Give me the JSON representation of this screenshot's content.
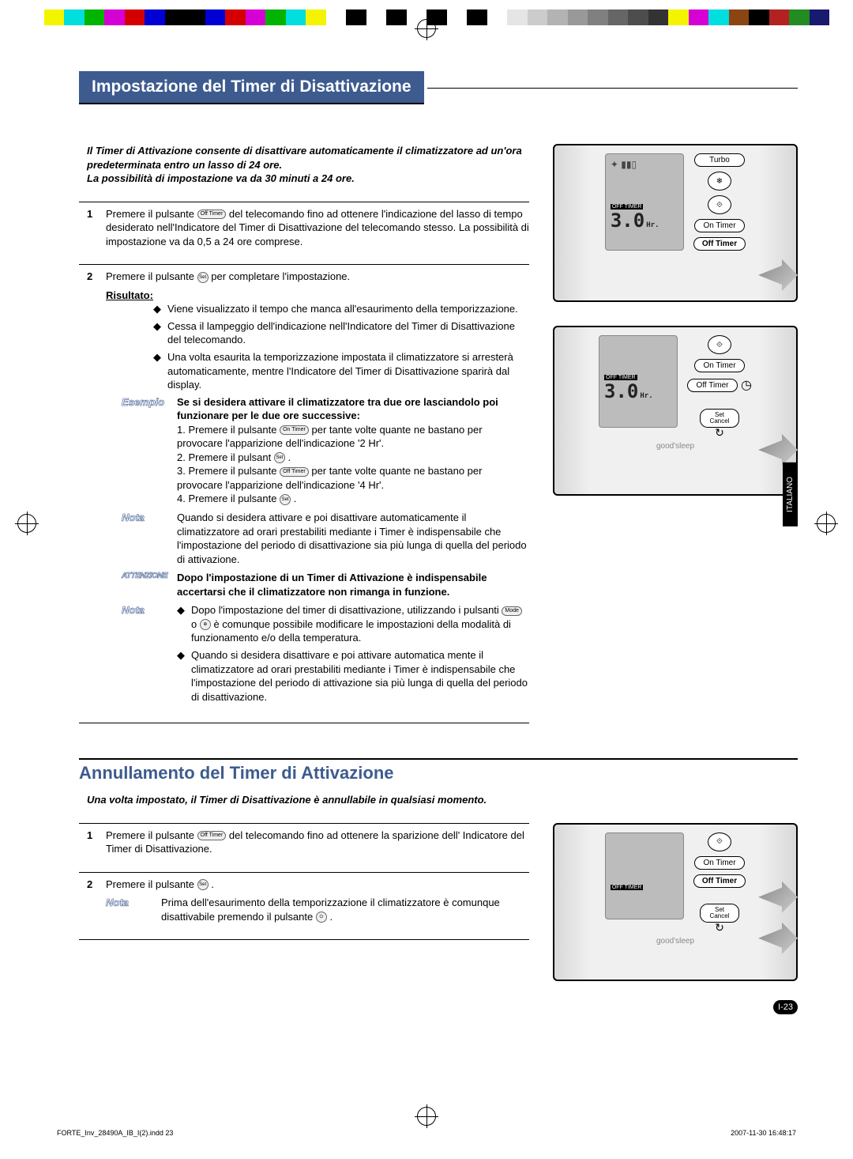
{
  "colorbar": [
    "#ffffff",
    "#f4f400",
    "#00dede",
    "#00b400",
    "#d400d4",
    "#d40000",
    "#0000d4",
    "#000000",
    "#000000",
    "#0000d4",
    "#d40000",
    "#d400d4",
    "#00b400",
    "#00dede",
    "#f4f400",
    "#ffffff",
    "#000000",
    "#ffffff",
    "#000000",
    "#ffffff",
    "#000000",
    "#ffffff",
    "#000000",
    "#ffffff",
    "#e5e5e5",
    "#cccccc",
    "#b3b3b3",
    "#999999",
    "#808080",
    "#666666",
    "#4d4d4d",
    "#333333",
    "#f4f400",
    "#d400d4",
    "#00dede",
    "#8b4513",
    "#000000",
    "#b22222",
    "#228b22",
    "#191970"
  ],
  "colors": {
    "accent": "#3d5b8f",
    "text": "#000000",
    "bg": "#ffffff"
  },
  "header1": "Impostazione del  Timer di Disattivazione",
  "intro1a": "Il Timer di Attivazione consente di disattivare automaticamente il climatizzatore ad un'ora predeterminata  entro un lasso di 24 ore.",
  "intro1b": "La possibilità di impostazione va da 30 minuti  a 24 ore.",
  "step1": {
    "num": "1",
    "text": "Premere il pulsante           del telecomando fino ad ottenere l'indicazione del lasso di tempo desiderato nell'Indicatore del Timer di Disattivazione del telecomando stesso.  La possibilità di impostazione va da 0,5  a 24 ore comprese.",
    "btn": "Off Timer"
  },
  "step2": {
    "num": "2",
    "text_a": "Premere il pulsante ",
    "text_b": " per completare l'impostazione.",
    "risultato": "Risultato",
    "b1": "Viene visualizzato il tempo che manca all'esaurimento della temporizzazione.",
    "b2": "Cessa il lampeggio dell'indicazione nell'Indicatore del Timer di Disattivazione del telecomando.",
    "b3": "Una volta esaurita la temporizzazione impostata il climatizzatore si arresterà automaticamente, mentre l'Indicatore del Timer di Disattivazione sparirà dal display."
  },
  "esempio": {
    "label": "Esempio",
    "title": "Se si desidera attivare il climatizzatore tra due ore lasciandolo poi  funzionare per le due ore successive:",
    "l1": "1. Premere il pulsante             per tante volte quante ne bastano per provocare l'apparizione dell'indicazione '2 Hr'.",
    "l1btn": "On Timer",
    "l2": "2. Premere il pulsant          .",
    "l3": "3. Premere il pulsante             per tante volte quante ne bastano per provocare l'apparizione dell'indicazione '4 Hr'.",
    "l3btn": "Off Timer",
    "l4": "4. Premere il pulsante          ."
  },
  "nota1": {
    "label": "Nota",
    "text": "Quando si desidera attivare  e poi disattivare automaticamente  il climatizzatore ad orari prestabiliti mediante i Timer è indispensabile che l'impostazione del periodo di disattivazione sia più lunga di quella del periodo di attivazione."
  },
  "attenzione": {
    "label": "ATTENZIONE",
    "text": "Dopo l'impostazione di un Timer di Attivazione è indispensabile accertarsi che il climatizzatore non rimanga in funzione."
  },
  "nota2": {
    "label": "Nota",
    "b1": "Dopo l'impostazione del timer di disattivazione, utilizzando i pulsanti           o          è comunque possibile modificare le impostazioni della modalità di funzionamento e/o della temperatura.",
    "b1_btn1": "Mode",
    "b2": "Quando si desidera disattivare  e poi attivare automatica mente  il climatizzatore ad orari prestabiliti mediante i Timer è indispensabile che l'impostazione del periodo di attivazione sia più lunga di quella del periodo di disattivazione."
  },
  "header2": "Annullamento del  Timer di Attivazione",
  "intro2": "Una volta impostato, il  Timer di Disattivazione  è annullabile in qualsiasi momento.",
  "step2_1": {
    "num": "1",
    "text": "Premere il pulsante            del telecomando fino ad ottenere la sparizione dell' Indicatore del Timer di Disattivazione.",
    "btn": "Off Timer"
  },
  "step2_2": {
    "num": "2",
    "text_a": "Premere il pulsante ",
    "text_b": " .",
    "nota_label": "Nota",
    "nota_text": "Prima dell'esaurimento della temporizzazione il climatizzatore è comunque disattivabile premendo il pulsante          ."
  },
  "remote": {
    "turbo": "Turbo",
    "on_timer": "On Timer",
    "off_timer_btn": "Off Timer",
    "off_timer_tag": "OFF  TIMER",
    "seg": "3.0",
    "hr": "Hr.",
    "set": "Set",
    "cancel": "Cancel",
    "goodsleep": "good'sleep",
    "swing_icon": "❄",
    "air_icon": "⟐",
    "clock_icon": "◷"
  },
  "sidebar": "ITALIANO",
  "pagenum": "I-23",
  "footer_left": "FORTE_Inv_28490A_IB_I(2).indd   23",
  "footer_right": "2007-11-30   16:48:17"
}
